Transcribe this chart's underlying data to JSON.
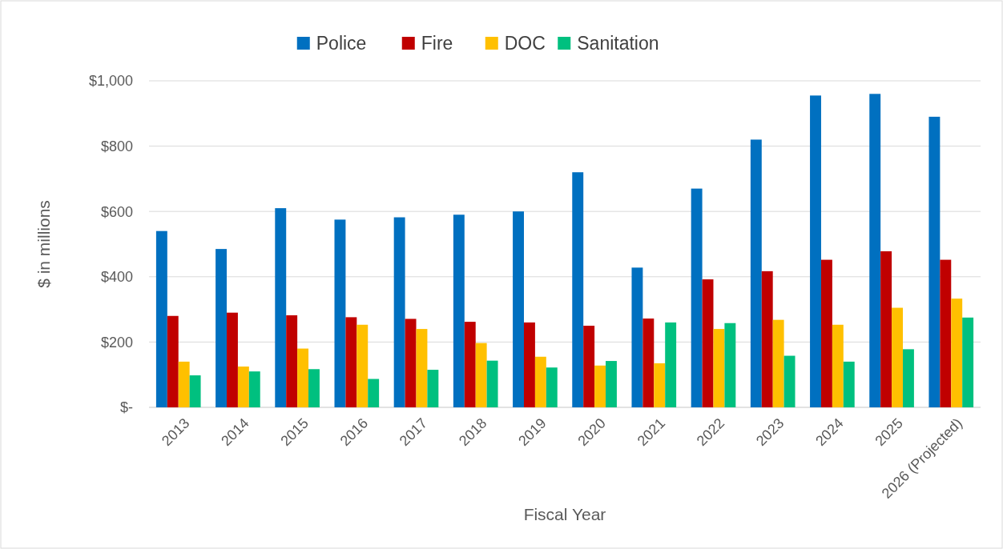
{
  "chart_data": {
    "type": "bar",
    "xlabel": "Fiscal Year",
    "ylabel": "$ in millions",
    "categories": [
      "2013",
      "2014",
      "2015",
      "2016",
      "2017",
      "2018",
      "2019",
      "2020",
      "2021",
      "2022",
      "2023",
      "2024",
      "2025",
      "2026 (Projected)"
    ],
    "series": [
      {
        "name": "Police",
        "color": "#0070c0",
        "values": [
          540,
          485,
          610,
          575,
          582,
          590,
          600,
          720,
          428,
          670,
          820,
          955,
          960,
          890
        ]
      },
      {
        "name": "Fire",
        "color": "#c00000",
        "values": [
          280,
          290,
          282,
          276,
          271,
          262,
          260,
          250,
          272,
          392,
          417,
          452,
          478,
          452
        ]
      },
      {
        "name": "DOC",
        "color": "#ffc000",
        "values": [
          140,
          125,
          180,
          253,
          240,
          197,
          155,
          128,
          135,
          240,
          268,
          253,
          305,
          333
        ]
      },
      {
        "name": "Sanitation",
        "color": "#00c07f",
        "values": [
          98,
          110,
          117,
          87,
          115,
          143,
          122,
          142,
          260,
          258,
          158,
          140,
          178,
          275
        ]
      }
    ],
    "ylim": [
      0,
      1000
    ],
    "yticks": [
      {
        "value": 0,
        "label": "$-"
      },
      {
        "value": 200,
        "label": "$200"
      },
      {
        "value": 400,
        "label": "$400"
      },
      {
        "value": 600,
        "label": "$600"
      },
      {
        "value": 800,
        "label": "$800"
      },
      {
        "value": 1000,
        "label": "$1,000"
      }
    ],
    "grid": "y",
    "legend": "top"
  }
}
